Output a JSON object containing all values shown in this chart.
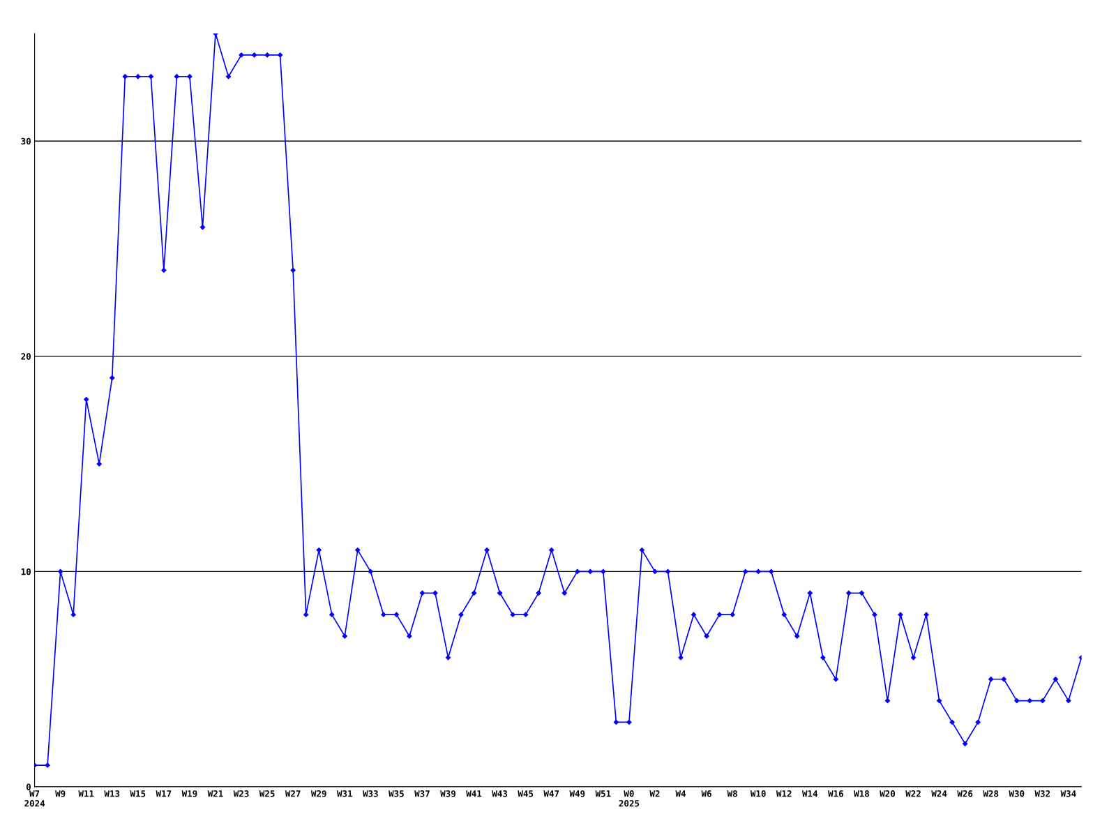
{
  "chart_data": {
    "type": "line",
    "categories": [
      "W7\n2024",
      null,
      "W9",
      null,
      "W11",
      null,
      "W13",
      null,
      "W15",
      null,
      "W17",
      null,
      "W19",
      null,
      "W21",
      null,
      "W23",
      null,
      "W25",
      null,
      "W27",
      null,
      "W29",
      null,
      "W31",
      null,
      "W33",
      null,
      "W35",
      null,
      "W37",
      null,
      "W39",
      null,
      "W41",
      null,
      "W43",
      null,
      "W45",
      null,
      "W47",
      null,
      "W49",
      null,
      "W51",
      null,
      "W0\n2025",
      null,
      "W2",
      null,
      "W4",
      null,
      "W6",
      null,
      "W8",
      null,
      "W10",
      null,
      "W12",
      null,
      "W14",
      null,
      "W16",
      null,
      "W18",
      null,
      "W20",
      null,
      "W22",
      null,
      "W24",
      null,
      "W26",
      null,
      "W28",
      null,
      "W30",
      null,
      "W32",
      null,
      "W34",
      null
    ],
    "series": [
      {
        "color": "#0000ff",
        "values": [
          1,
          1,
          10,
          8,
          18,
          15,
          19,
          33,
          33,
          33,
          24,
          33,
          33,
          26,
          35,
          33,
          34,
          34,
          34,
          34,
          24,
          8,
          11,
          8,
          7,
          11,
          10,
          8,
          8,
          7,
          9,
          9,
          6,
          8,
          9,
          11,
          9,
          8,
          8,
          9,
          11,
          9,
          10,
          10,
          10,
          3,
          3,
          11,
          10,
          10,
          6,
          8,
          7,
          8,
          8,
          10,
          10,
          10,
          8,
          7,
          9,
          6,
          5,
          9,
          9,
          8,
          4,
          8,
          6,
          8,
          4,
          3,
          2,
          3,
          5,
          5,
          4,
          4,
          4,
          5,
          4,
          6
        ]
      }
    ],
    "ylim": [
      0,
      35
    ],
    "yticks": [
      0,
      10,
      20,
      30
    ],
    "grid": "y",
    "marker": "diamond",
    "line_style": "solid",
    "legend": false
  }
}
